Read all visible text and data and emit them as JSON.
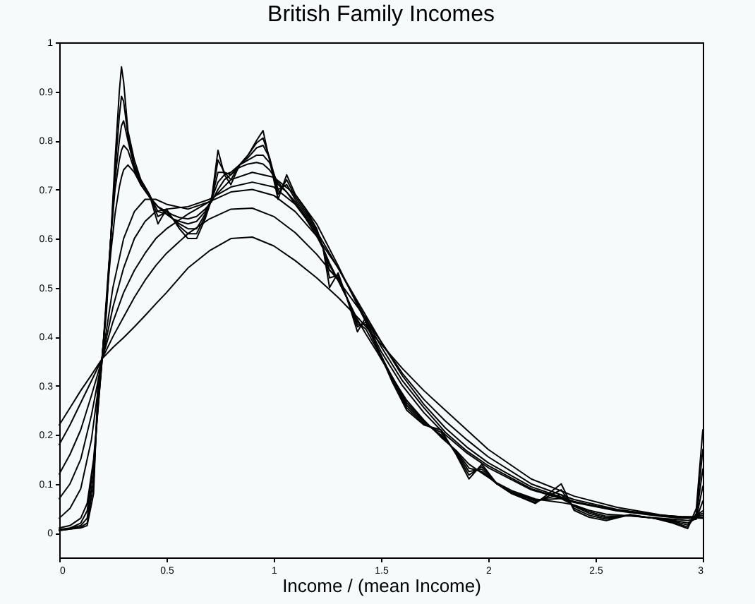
{
  "chart_data": {
    "type": "line",
    "title": "British Family Incomes",
    "xlabel": "Income / (mean Income)",
    "xlim": [
      0,
      3
    ],
    "xticks": [
      0,
      0.5,
      1,
      1.5,
      2,
      2.5,
      3
    ],
    "ylim": [
      -0.05,
      1
    ],
    "yticks": [
      0,
      0.1,
      0.2,
      0.3,
      0.4,
      0.5,
      0.6,
      0.7,
      0.8,
      0.9,
      1
    ],
    "line_style": "solid",
    "x": [
      0,
      0.05,
      0.1,
      0.13,
      0.16,
      0.18,
      0.2,
      0.22,
      0.24,
      0.26,
      0.28,
      0.29,
      0.3,
      0.32,
      0.35,
      0.38,
      0.42,
      0.46,
      0.5,
      0.53,
      0.56,
      0.6,
      0.64,
      0.68,
      0.71,
      0.74,
      0.77,
      0.8,
      0.84,
      0.88,
      0.92,
      0.95,
      0.98,
      1.02,
      1.06,
      1.1,
      1.15,
      1.2,
      1.23,
      1.26,
      1.3,
      1.34,
      1.39,
      1.43,
      1.48,
      1.55,
      1.62,
      1.7,
      1.78,
      1.85,
      1.91,
      1.97,
      2.04,
      2.11,
      2.22,
      2.34,
      2.4,
      2.47,
      2.55,
      2.66,
      2.77,
      2.86,
      2.93,
      2.97,
      3.0
    ],
    "series": [
      {
        "color": "#000000",
        "x": [
          0,
          0.05,
          0.1,
          0.15,
          0.2,
          0.25,
          0.3,
          0.35,
          0.4,
          0.45,
          0.5,
          0.6,
          0.7,
          0.8,
          0.9,
          1.0,
          1.1,
          1.2,
          1.3,
          1.4,
          1.5,
          1.6,
          1.7,
          1.8,
          1.9,
          2.0,
          2.2,
          2.4,
          2.6,
          2.8,
          2.9,
          2.95,
          3.0
        ],
        "values": [
          0.22,
          0.255,
          0.29,
          0.322,
          0.355,
          0.378,
          0.398,
          0.42,
          0.443,
          0.467,
          0.49,
          0.54,
          0.575,
          0.6,
          0.603,
          0.585,
          0.555,
          0.52,
          0.48,
          0.435,
          0.385,
          0.335,
          0.29,
          0.25,
          0.21,
          0.17,
          0.11,
          0.075,
          0.052,
          0.037,
          0.032,
          0.031,
          0.03
        ]
      },
      {
        "color": "#000000",
        "x": [
          0,
          0.05,
          0.1,
          0.15,
          0.2,
          0.25,
          0.3,
          0.35,
          0.4,
          0.45,
          0.5,
          0.6,
          0.7,
          0.8,
          0.9,
          1.0,
          1.1,
          1.2,
          1.3,
          1.4,
          1.5,
          1.6,
          1.7,
          1.8,
          1.9,
          2.0,
          2.2,
          2.4,
          2.6,
          2.8,
          2.9,
          2.95,
          3.0
        ],
        "values": [
          0.18,
          0.22,
          0.265,
          0.31,
          0.355,
          0.4,
          0.44,
          0.48,
          0.515,
          0.545,
          0.57,
          0.61,
          0.64,
          0.66,
          0.662,
          0.645,
          0.612,
          0.568,
          0.515,
          0.455,
          0.39,
          0.325,
          0.272,
          0.228,
          0.19,
          0.155,
          0.1,
          0.068,
          0.048,
          0.036,
          0.033,
          0.032,
          0.032
        ]
      },
      {
        "color": "#000000",
        "x": [
          0,
          0.05,
          0.1,
          0.15,
          0.2,
          0.25,
          0.3,
          0.35,
          0.4,
          0.45,
          0.5,
          0.6,
          0.7,
          0.8,
          0.9,
          1.0,
          1.1,
          1.2,
          1.3,
          1.4,
          1.5,
          1.6,
          1.7,
          1.8,
          1.9,
          2.0,
          2.2,
          2.4,
          2.6,
          2.8,
          2.9,
          2.95,
          3.0
        ],
        "values": [
          0.12,
          0.16,
          0.21,
          0.28,
          0.355,
          0.43,
          0.49,
          0.535,
          0.57,
          0.6,
          0.62,
          0.65,
          0.675,
          0.695,
          0.7,
          0.688,
          0.655,
          0.605,
          0.54,
          0.465,
          0.39,
          0.32,
          0.262,
          0.214,
          0.175,
          0.143,
          0.094,
          0.064,
          0.046,
          0.036,
          0.033,
          0.033,
          0.036
        ]
      },
      {
        "color": "#000000",
        "x": [
          0,
          0.05,
          0.1,
          0.15,
          0.2,
          0.25,
          0.3,
          0.35,
          0.4,
          0.45,
          0.5,
          0.6,
          0.7,
          0.8,
          0.9,
          1.0,
          1.1,
          1.2,
          1.3,
          1.4,
          1.5,
          1.6,
          1.7,
          1.8,
          1.9,
          2.0,
          2.2,
          2.4,
          2.6,
          2.8,
          2.9,
          2.95,
          3.0
        ],
        "values": [
          0.07,
          0.1,
          0.15,
          0.24,
          0.355,
          0.46,
          0.54,
          0.6,
          0.635,
          0.655,
          0.66,
          0.665,
          0.68,
          0.705,
          0.715,
          0.705,
          0.67,
          0.615,
          0.54,
          0.46,
          0.38,
          0.31,
          0.255,
          0.205,
          0.167,
          0.137,
          0.09,
          0.063,
          0.046,
          0.035,
          0.032,
          0.032,
          0.04
        ]
      },
      {
        "color": "#000000",
        "x": [
          0,
          0.05,
          0.1,
          0.15,
          0.2,
          0.25,
          0.3,
          0.35,
          0.4,
          0.45,
          0.5,
          0.6,
          0.7,
          0.8,
          0.9,
          1.0,
          1.1,
          1.2,
          1.3,
          1.4,
          1.5,
          1.6,
          1.7,
          1.8,
          1.9,
          2.0,
          2.2,
          2.4,
          2.6,
          2.8,
          2.9,
          2.95,
          3.0
        ],
        "values": [
          0.03,
          0.05,
          0.09,
          0.19,
          0.355,
          0.5,
          0.6,
          0.655,
          0.68,
          0.68,
          0.67,
          0.66,
          0.675,
          0.72,
          0.735,
          0.725,
          0.69,
          0.63,
          0.545,
          0.455,
          0.37,
          0.3,
          0.245,
          0.2,
          0.163,
          0.133,
          0.088,
          0.062,
          0.045,
          0.034,
          0.03,
          0.03,
          0.045
        ]
      },
      {
        "color": "#000000",
        "values": [
          0.01,
          0.015,
          0.03,
          0.06,
          0.15,
          0.25,
          0.355,
          0.47,
          0.57,
          0.65,
          0.705,
          0.725,
          0.74,
          0.75,
          0.735,
          0.71,
          0.685,
          0.665,
          0.655,
          0.648,
          0.643,
          0.64,
          0.645,
          0.66,
          0.675,
          0.7,
          0.72,
          0.73,
          0.745,
          0.752,
          0.755,
          0.752,
          0.74,
          0.715,
          0.695,
          0.67,
          0.64,
          0.605,
          0.58,
          0.55,
          0.515,
          0.48,
          0.435,
          0.405,
          0.37,
          0.318,
          0.27,
          0.23,
          0.195,
          0.168,
          0.14,
          0.122,
          0.102,
          0.086,
          0.069,
          0.062,
          0.057,
          0.046,
          0.038,
          0.035,
          0.031,
          0.028,
          0.025,
          0.028,
          0.065
        ]
      },
      {
        "color": "#000000",
        "values": [
          0.007,
          0.01,
          0.02,
          0.045,
          0.14,
          0.25,
          0.355,
          0.48,
          0.6,
          0.7,
          0.76,
          0.78,
          0.79,
          0.78,
          0.74,
          0.71,
          0.685,
          0.665,
          0.65,
          0.64,
          0.635,
          0.63,
          0.635,
          0.655,
          0.68,
          0.715,
          0.73,
          0.735,
          0.75,
          0.76,
          0.77,
          0.77,
          0.755,
          0.71,
          0.695,
          0.675,
          0.645,
          0.61,
          0.58,
          0.545,
          0.515,
          0.48,
          0.43,
          0.415,
          0.375,
          0.32,
          0.265,
          0.228,
          0.197,
          0.167,
          0.132,
          0.125,
          0.1,
          0.083,
          0.067,
          0.07,
          0.056,
          0.043,
          0.034,
          0.035,
          0.03,
          0.026,
          0.02,
          0.03,
          0.095
        ]
      },
      {
        "color": "#000000",
        "values": [
          0.006,
          0.009,
          0.015,
          0.03,
          0.12,
          0.26,
          0.355,
          0.47,
          0.6,
          0.72,
          0.8,
          0.83,
          0.84,
          0.8,
          0.745,
          0.715,
          0.69,
          0.655,
          0.65,
          0.64,
          0.63,
          0.62,
          0.62,
          0.65,
          0.68,
          0.735,
          0.735,
          0.73,
          0.75,
          0.765,
          0.785,
          0.79,
          0.765,
          0.7,
          0.71,
          0.68,
          0.65,
          0.615,
          0.58,
          0.535,
          0.52,
          0.48,
          0.425,
          0.425,
          0.38,
          0.318,
          0.26,
          0.225,
          0.2,
          0.165,
          0.125,
          0.13,
          0.1,
          0.082,
          0.065,
          0.078,
          0.054,
          0.04,
          0.031,
          0.036,
          0.03,
          0.024,
          0.016,
          0.035,
          0.13
        ]
      },
      {
        "color": "#000000",
        "values": [
          0.005,
          0.008,
          0.012,
          0.02,
          0.1,
          0.28,
          0.36,
          0.46,
          0.6,
          0.74,
          0.85,
          0.89,
          0.88,
          0.81,
          0.75,
          0.72,
          0.69,
          0.645,
          0.655,
          0.64,
          0.625,
          0.61,
          0.61,
          0.645,
          0.68,
          0.76,
          0.735,
          0.72,
          0.75,
          0.77,
          0.795,
          0.805,
          0.765,
          0.69,
          0.72,
          0.685,
          0.655,
          0.62,
          0.58,
          0.52,
          0.525,
          0.48,
          0.42,
          0.43,
          0.38,
          0.315,
          0.255,
          0.222,
          0.205,
          0.162,
          0.118,
          0.135,
          0.1,
          0.08,
          0.062,
          0.088,
          0.05,
          0.036,
          0.028,
          0.037,
          0.03,
          0.022,
          0.012,
          0.04,
          0.17
        ]
      },
      {
        "color": "#000000",
        "values": [
          0.005,
          0.008,
          0.01,
          0.015,
          0.08,
          0.3,
          0.36,
          0.45,
          0.6,
          0.76,
          0.9,
          0.95,
          0.92,
          0.82,
          0.76,
          0.72,
          0.69,
          0.63,
          0.66,
          0.64,
          0.62,
          0.6,
          0.6,
          0.64,
          0.68,
          0.78,
          0.73,
          0.71,
          0.75,
          0.77,
          0.8,
          0.82,
          0.76,
          0.68,
          0.73,
          0.69,
          0.66,
          0.62,
          0.58,
          0.5,
          0.53,
          0.48,
          0.41,
          0.44,
          0.38,
          0.31,
          0.25,
          0.22,
          0.21,
          0.16,
          0.11,
          0.14,
          0.1,
          0.08,
          0.06,
          0.1,
          0.046,
          0.032,
          0.025,
          0.037,
          0.03,
          0.02,
          0.009,
          0.05,
          0.21
        ]
      }
    ]
  }
}
